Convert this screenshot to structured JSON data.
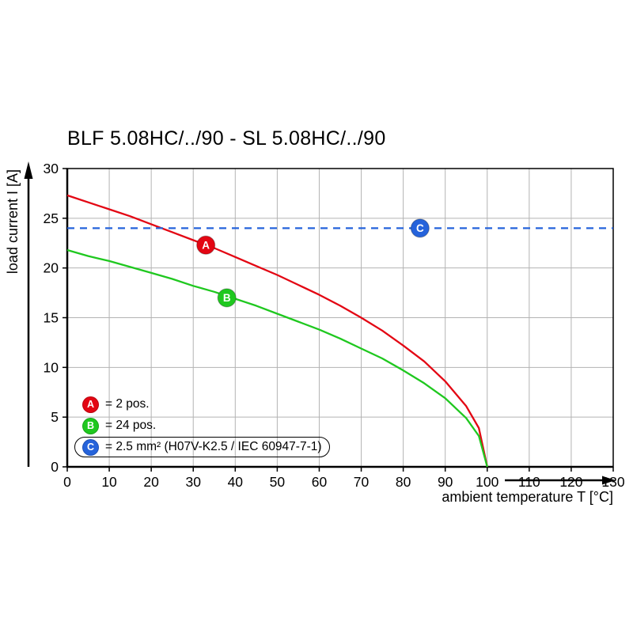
{
  "chart_data": {
    "type": "line",
    "title": "BLF 5.08HC/../90 - SL 5.08HC/../90",
    "xlabel": "ambient temperature T [°C]",
    "ylabel": "load current I [A]",
    "xlim": [
      0,
      130
    ],
    "ylim": [
      0,
      30
    ],
    "xticks": [
      0,
      10,
      20,
      30,
      40,
      50,
      60,
      70,
      80,
      90,
      100,
      110,
      120,
      130
    ],
    "yticks": [
      0,
      5,
      10,
      15,
      20,
      25,
      30
    ],
    "grid": true,
    "legend_position": "lower left",
    "series": [
      {
        "name": "A",
        "label": "= 2 pos.",
        "color": "#e30613",
        "style": "solid",
        "x": [
          0,
          5,
          10,
          15,
          20,
          25,
          30,
          35,
          40,
          45,
          50,
          55,
          60,
          65,
          70,
          75,
          80,
          85,
          90,
          95,
          98,
          100
        ],
        "y": [
          27.3,
          26.6,
          25.9,
          25.2,
          24.4,
          23.6,
          22.8,
          22.0,
          21.1,
          20.2,
          19.3,
          18.3,
          17.3,
          16.2,
          15.0,
          13.7,
          12.2,
          10.6,
          8.6,
          6.1,
          3.9,
          0
        ],
        "marker": {
          "x": 33,
          "y": 22.3,
          "letter": "A"
        }
      },
      {
        "name": "B",
        "label": "= 24 pos.",
        "color": "#1fc81f",
        "style": "solid",
        "x": [
          0,
          5,
          10,
          15,
          20,
          25,
          30,
          35,
          40,
          45,
          50,
          55,
          60,
          65,
          70,
          75,
          80,
          85,
          90,
          95,
          98,
          100
        ],
        "y": [
          21.8,
          21.2,
          20.7,
          20.1,
          19.5,
          18.9,
          18.2,
          17.6,
          16.9,
          16.2,
          15.4,
          14.6,
          13.8,
          12.9,
          11.9,
          10.9,
          9.7,
          8.4,
          6.9,
          4.9,
          3.1,
          0
        ],
        "marker": {
          "x": 38,
          "y": 17,
          "letter": "B"
        }
      },
      {
        "name": "C",
        "label": "= 2.5 mm² (H07V-K2.5 / IEC 60947-7-1)",
        "color": "#2563db",
        "style": "dashed",
        "x": [
          0,
          130
        ],
        "y": [
          24,
          24
        ],
        "marker": {
          "x": 84,
          "y": 24,
          "letter": "C"
        }
      }
    ]
  }
}
